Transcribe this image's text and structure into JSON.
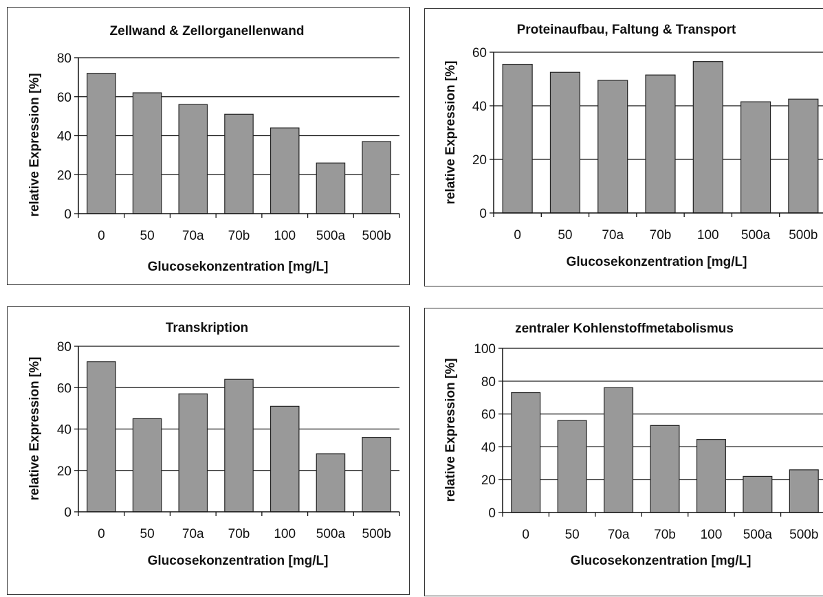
{
  "bar_color": "#999999",
  "chart_data": [
    {
      "type": "bar",
      "title": "Zellwand & Zellorganellenwand",
      "xlabel": "Glucosekonzentration [mg/L]",
      "ylabel": "relative Expression [%]",
      "categories": [
        "0",
        "50",
        "70a",
        "70b",
        "100",
        "500a",
        "500b"
      ],
      "values": [
        72,
        62,
        56,
        51,
        44,
        26,
        37
      ],
      "ylim": [
        0,
        80
      ],
      "yticks": [
        0,
        20,
        40,
        60,
        80
      ],
      "grid": true
    },
    {
      "type": "bar",
      "title": "Proteinaufbau, Faltung & Transport",
      "xlabel": "Glucosekonzentration [mg/L]",
      "ylabel": "relative Expression [%]",
      "categories": [
        "0",
        "50",
        "70a",
        "70b",
        "100",
        "500a",
        "500b"
      ],
      "values": [
        55.5,
        52.5,
        49.5,
        51.5,
        56.5,
        41.5,
        42.5
      ],
      "ylim": [
        0,
        60
      ],
      "yticks": [
        0,
        20,
        40,
        60
      ],
      "grid": true
    },
    {
      "type": "bar",
      "title": "Transkription",
      "xlabel": "Glucosekonzentration [mg/L]",
      "ylabel": "relative Expression [%]",
      "categories": [
        "0",
        "50",
        "70a",
        "70b",
        "100",
        "500a",
        "500b"
      ],
      "values": [
        72.5,
        45,
        57,
        64,
        51,
        28,
        36
      ],
      "ylim": [
        0,
        80
      ],
      "yticks": [
        0,
        20,
        40,
        60,
        80
      ],
      "grid": true
    },
    {
      "type": "bar",
      "title": "zentraler Kohlenstoffmetabolismus",
      "xlabel": "Glucosekonzentration [mg/L]",
      "ylabel": "relative Expression [%]",
      "categories": [
        "0",
        "50",
        "70a",
        "70b",
        "100",
        "500a",
        "500b"
      ],
      "values": [
        73,
        56,
        76,
        53,
        44.5,
        22,
        26
      ],
      "ylim": [
        0,
        100
      ],
      "yticks": [
        0,
        20,
        40,
        60,
        80,
        100
      ],
      "grid": true
    }
  ]
}
